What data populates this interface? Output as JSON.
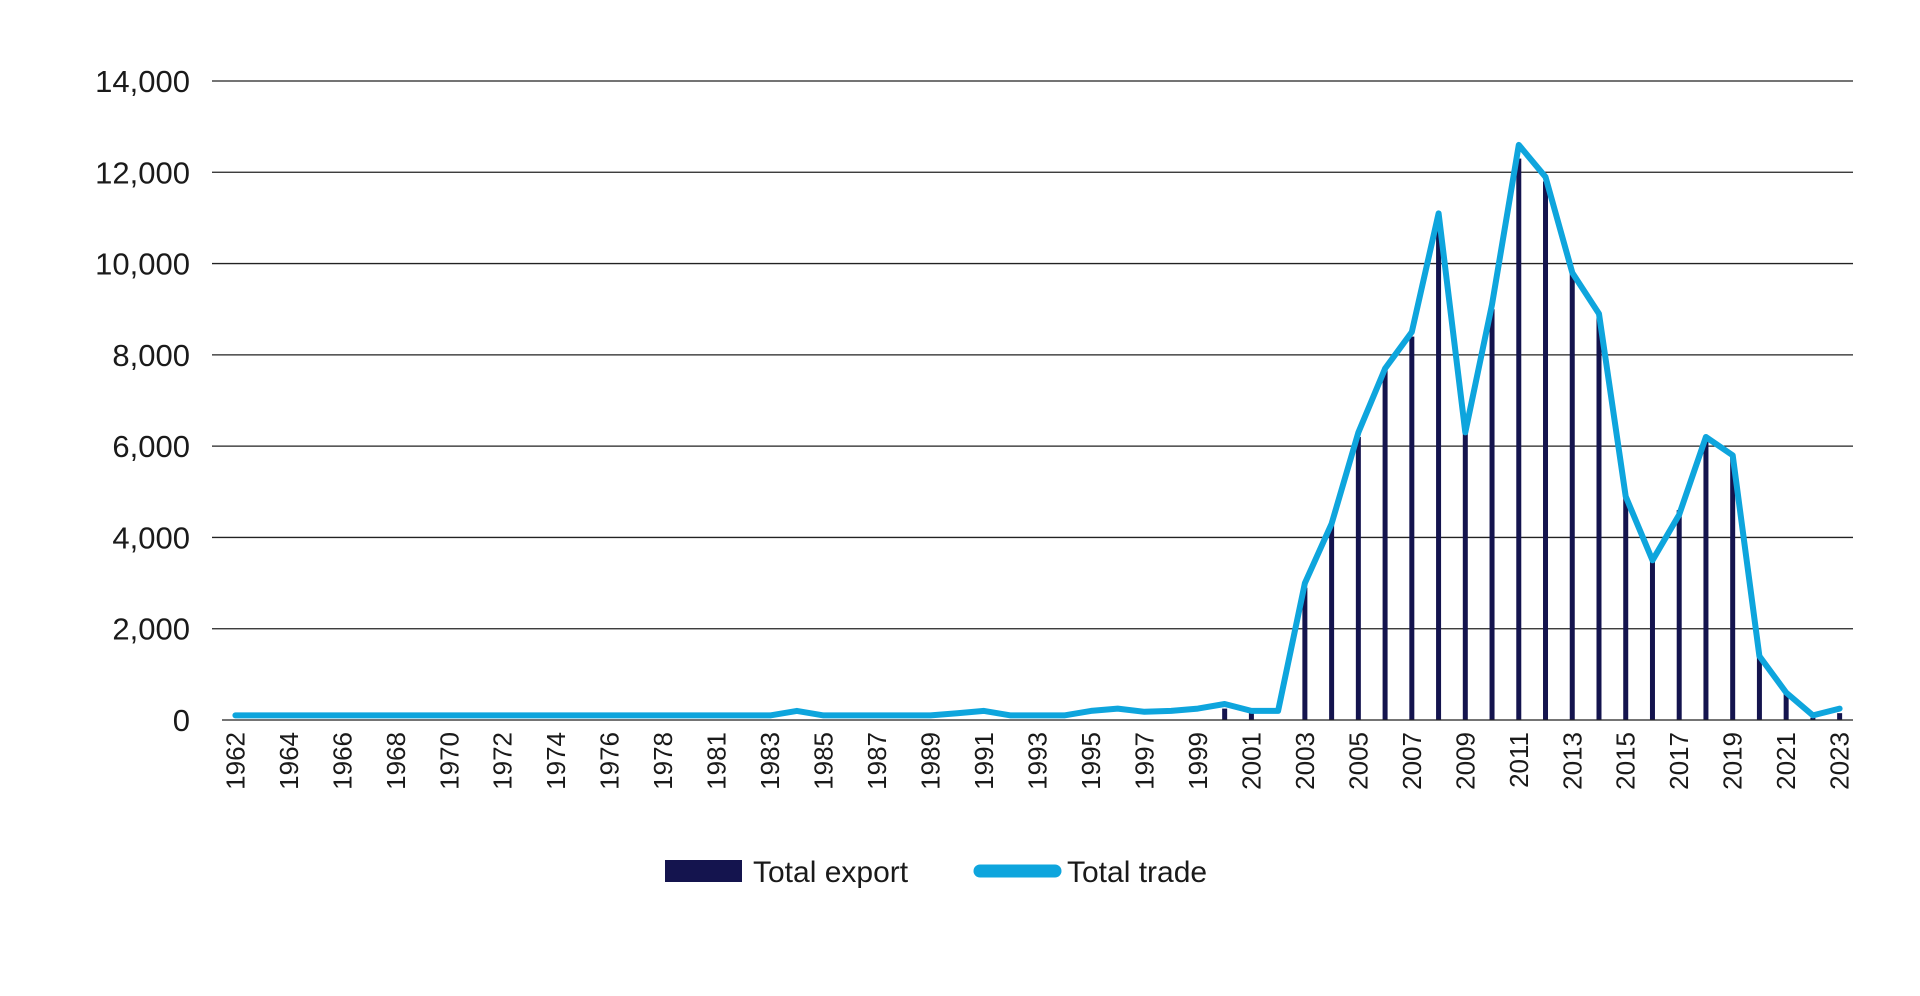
{
  "colors": {
    "export": "#14144e",
    "trade": "#0ea5dd",
    "grid": "#222222",
    "text": "#1a1a1a"
  },
  "chart_data": {
    "type": "bar",
    "title": "",
    "xlabel": "",
    "ylabel": "",
    "ylim": [
      0,
      14000
    ],
    "yticks": [
      0,
      2000,
      4000,
      6000,
      8000,
      10000,
      12000,
      14000
    ],
    "ytick_labels": [
      "0",
      "2,000",
      "4,000",
      "6,000",
      "8,000",
      "10,000",
      "12,000",
      "14,000"
    ],
    "grid": "horizontal",
    "legend_position": "bottom",
    "legend": [
      "Total export",
      "Total trade"
    ],
    "categories": [
      "1962",
      "1963",
      "1964",
      "1965",
      "1966",
      "1967",
      "1968",
      "1969",
      "1970",
      "1971",
      "1972",
      "1973",
      "1974",
      "1975",
      "1976",
      "1977",
      "1978",
      "1980",
      "1981",
      "1982",
      "1983",
      "1984",
      "1985",
      "1986",
      "1987",
      "1988",
      "1989",
      "1990",
      "1991",
      "1992",
      "1993",
      "1994",
      "1995",
      "1996",
      "1997",
      "1998",
      "1999",
      "2000",
      "2001",
      "2002",
      "2003",
      "2004",
      "2005",
      "2006",
      "2007",
      "2008",
      "2009",
      "2010",
      "2011",
      "2012",
      "2013",
      "2014",
      "2015",
      "2016",
      "2017",
      "2018",
      "2019",
      "2020",
      "2021",
      "2022",
      "2023"
    ],
    "xtick_labels": [
      "1962",
      "",
      "1964",
      "",
      "1966",
      "",
      "1968",
      "",
      "1970",
      "",
      "1972",
      "",
      "1974",
      "",
      "1976",
      "",
      "1978",
      "",
      "1981",
      "",
      "1983",
      "",
      "1985",
      "",
      "1987",
      "",
      "1989",
      "",
      "1991",
      "",
      "1993",
      "",
      "1995",
      "",
      "1997",
      "",
      "1999",
      "",
      "2001",
      "",
      "2003",
      "",
      "2005",
      "",
      "2007",
      "",
      "2009",
      "",
      "2011",
      "",
      "2013",
      "",
      "2015",
      "",
      "2017",
      "",
      "2019",
      "",
      "2021",
      "",
      "2023"
    ],
    "series": [
      {
        "name": "Total export",
        "kind": "bar",
        "values": [
          0,
          0,
          0,
          0,
          0,
          0,
          0,
          0,
          0,
          0,
          0,
          0,
          0,
          0,
          0,
          0,
          0,
          0,
          0,
          0,
          0,
          0,
          0,
          0,
          0,
          0,
          0,
          0,
          0,
          0,
          0,
          0,
          0,
          0,
          0,
          0,
          0,
          250,
          150,
          0,
          2900,
          4300,
          6200,
          7700,
          8400,
          10800,
          6300,
          9000,
          12300,
          11800,
          9800,
          8900,
          4900,
          3500,
          4600,
          6100,
          5800,
          1400,
          600,
          50,
          150
        ]
      },
      {
        "name": "Total trade",
        "kind": "line",
        "values": [
          100,
          100,
          100,
          100,
          100,
          100,
          100,
          100,
          100,
          100,
          100,
          100,
          100,
          100,
          100,
          100,
          100,
          100,
          100,
          100,
          100,
          200,
          100,
          100,
          100,
          100,
          100,
          150,
          200,
          100,
          100,
          100,
          200,
          250,
          180,
          200,
          250,
          350,
          200,
          200,
          3000,
          4300,
          6300,
          7700,
          8500,
          11100,
          6300,
          9100,
          12600,
          11900,
          9800,
          8900,
          4900,
          3500,
          4500,
          6200,
          5800,
          1400,
          600,
          100,
          250
        ]
      }
    ]
  }
}
